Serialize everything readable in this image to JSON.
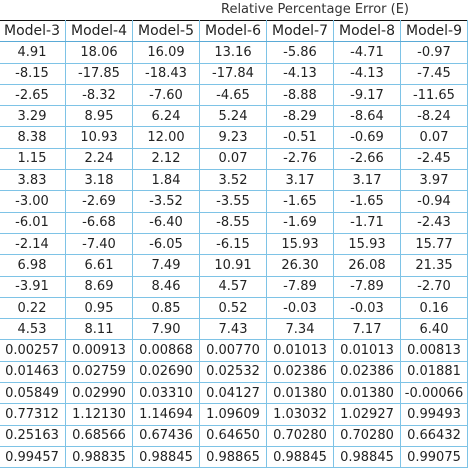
{
  "title": "Relative Percentage Error (E)",
  "headers": [
    "Model-3",
    "Model-4",
    "Model-5",
    "Model-6",
    "Model-7",
    "Model-8",
    "Model-9"
  ],
  "rows": [
    [
      "4.91",
      "18.06",
      "16.09",
      "13.16",
      "-5.86",
      "-4.71",
      "-0.97"
    ],
    [
      "-8.15",
      "-17.85",
      "-18.43",
      "-17.84",
      "-4.13",
      "-4.13",
      "-7.45"
    ],
    [
      "-2.65",
      "-8.32",
      "-7.60",
      "-4.65",
      "-8.88",
      "-9.17",
      "-11.65"
    ],
    [
      "3.29",
      "8.95",
      "6.24",
      "5.24",
      "-8.29",
      "-8.64",
      "-8.24"
    ],
    [
      "8.38",
      "10.93",
      "12.00",
      "9.23",
      "-0.51",
      "-0.69",
      "0.07"
    ],
    [
      "1.15",
      "2.24",
      "2.12",
      "0.07",
      "-2.76",
      "-2.66",
      "-2.45"
    ],
    [
      "3.83",
      "3.18",
      "1.84",
      "3.52",
      "3.17",
      "3.17",
      "3.97"
    ],
    [
      "-3.00",
      "-2.69",
      "-3.52",
      "-3.55",
      "-1.65",
      "-1.65",
      "-0.94"
    ],
    [
      "-6.01",
      "-6.68",
      "-6.40",
      "-8.55",
      "-1.69",
      "-1.71",
      "-2.43"
    ],
    [
      "-2.14",
      "-7.40",
      "-6.05",
      "-6.15",
      "15.93",
      "15.93",
      "15.77"
    ],
    [
      "6.98",
      "6.61",
      "7.49",
      "10.91",
      "26.30",
      "26.08",
      "21.35"
    ],
    [
      "-3.91",
      "8.69",
      "8.46",
      "4.57",
      "-7.89",
      "-7.89",
      "-2.70"
    ],
    [
      "0.22",
      "0.95",
      "0.85",
      "0.52",
      "-0.03",
      "-0.03",
      "0.16"
    ],
    [
      "4.53",
      "8.11",
      "7.90",
      "7.43",
      "7.34",
      "7.17",
      "6.40"
    ],
    [
      "0.00257",
      "0.00913",
      "0.00868",
      "0.00770",
      "0.01013",
      "0.01013",
      "0.00813"
    ],
    [
      "0.01463",
      "0.02759",
      "0.02690",
      "0.02532",
      "0.02386",
      "0.02386",
      "0.01881"
    ],
    [
      "0.05849",
      "0.02990",
      "0.03310",
      "0.04127",
      "0.01380",
      "0.01380",
      "-0.00066"
    ],
    [
      "0.77312",
      "1.12130",
      "1.14694",
      "1.09609",
      "1.03032",
      "1.02927",
      "0.99493"
    ],
    [
      "0.25163",
      "0.68566",
      "0.67436",
      "0.64650",
      "0.70280",
      "0.70280",
      "0.66432"
    ],
    [
      "0.99457",
      "0.98835",
      "0.98845",
      "0.98865",
      "0.98845",
      "0.98845",
      "0.99075"
    ]
  ]
}
